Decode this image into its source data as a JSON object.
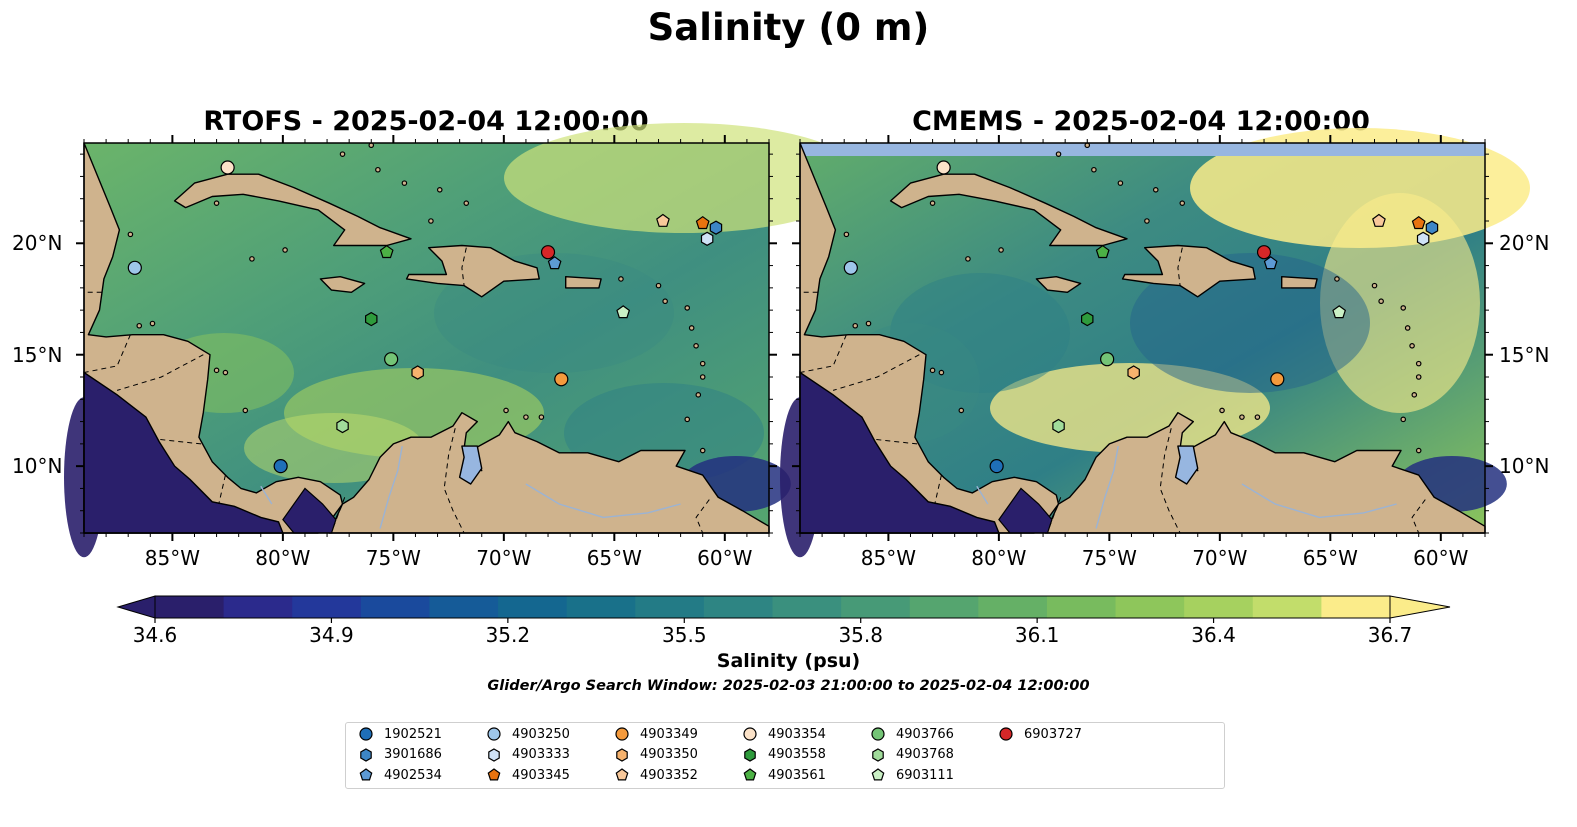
{
  "suptitle": "Salinity (0 m)",
  "panels": [
    {
      "title": "RTOFS - 2025-02-04 12:00:00",
      "model": "RTOFS"
    },
    {
      "title": "CMEMS - 2025-02-04 12:00:00",
      "model": "CMEMS"
    }
  ],
  "lon_ticks": [
    {
      "value": -85,
      "label": "85°W"
    },
    {
      "value": -80,
      "label": "80°W"
    },
    {
      "value": -75,
      "label": "75°W"
    },
    {
      "value": -70,
      "label": "70°W"
    },
    {
      "value": -65,
      "label": "65°W"
    },
    {
      "value": -60,
      "label": "60°W"
    }
  ],
  "lat_ticks": [
    {
      "value": 10,
      "label": "10°N"
    },
    {
      "value": 15,
      "label": "15°N"
    },
    {
      "value": 20,
      "label": "20°N"
    }
  ],
  "extent": {
    "lon_min": -89,
    "lon_max": -58,
    "lat_min": 7,
    "lat_max": 24.5
  },
  "colorbar": {
    "label": "Salinity (psu)",
    "vmin": 34.6,
    "vmax": 36.7,
    "ticks": [
      "34.6",
      "34.9",
      "35.2",
      "35.5",
      "35.8",
      "36.1",
      "36.4",
      "36.7"
    ],
    "colors": [
      "#2a1f6b",
      "#2b2a8c",
      "#23389b",
      "#1a4a9d",
      "#155b98",
      "#146790",
      "#19718a",
      "#237b86",
      "#2e8583",
      "#3a907e",
      "#479a77",
      "#55a56f",
      "#65b066",
      "#78bb5e",
      "#8ec65b",
      "#a6d15f",
      "#c2dd6b",
      "#fbec8a"
    ]
  },
  "search_window": "Glider/Argo Search Window: 2025-02-03 21:00:00 to 2025-02-04 12:00:00",
  "colors": {
    "land": "#cfb38d",
    "lake": "#97b6e0",
    "cmems_nodata": "#97b6e0",
    "ocean_mean": "#5aa56e"
  },
  "floats": [
    {
      "id": "1902521",
      "marker": "circle",
      "color": "#1f6fb8",
      "lon": -80.1,
      "lat": 10.0
    },
    {
      "id": "3901686",
      "marker": "hexagon",
      "color": "#3d86c6",
      "lon": -60.4,
      "lat": 20.7
    },
    {
      "id": "4902534",
      "marker": "pentagon",
      "color": "#5d9ad4",
      "lon": -67.7,
      "lat": 19.1
    },
    {
      "id": "4903250",
      "marker": "circle",
      "color": "#9ec6ea",
      "lon": -86.7,
      "lat": 18.9
    },
    {
      "id": "4903333",
      "marker": "hexagon",
      "color": "#cfe2f6",
      "lon": -60.8,
      "lat": 20.2
    },
    {
      "id": "4903345",
      "marker": "pentagon",
      "color": "#e8730f",
      "lon": -61.0,
      "lat": 20.9
    },
    {
      "id": "4903349",
      "marker": "circle",
      "color": "#f49a3c",
      "lon": -67.4,
      "lat": 13.9
    },
    {
      "id": "4903350",
      "marker": "hexagon",
      "color": "#f6b26d",
      "lon": -73.9,
      "lat": 14.2
    },
    {
      "id": "4903352",
      "marker": "pentagon",
      "color": "#f8c89a",
      "lon": -62.8,
      "lat": 21.0
    },
    {
      "id": "4903354",
      "marker": "circle",
      "color": "#fbe2c8",
      "lon": -82.5,
      "lat": 23.4
    },
    {
      "id": "4903558",
      "marker": "hexagon",
      "color": "#2e9b3c",
      "lon": -76.0,
      "lat": 16.6
    },
    {
      "id": "4903561",
      "marker": "pentagon",
      "color": "#4cb145",
      "lon": -75.3,
      "lat": 19.6
    },
    {
      "id": "4903766",
      "marker": "circle",
      "color": "#74c476",
      "lon": -75.1,
      "lat": 14.8
    },
    {
      "id": "4903768",
      "marker": "hexagon",
      "color": "#a1dc9b",
      "lon": -77.3,
      "lat": 11.8
    },
    {
      "id": "6903111",
      "marker": "pentagon",
      "color": "#caf0c5",
      "lon": -64.6,
      "lat": 16.9
    },
    {
      "id": "6903727",
      "marker": "circle",
      "color": "#d62728",
      "lon": -68.0,
      "lat": 19.6
    }
  ]
}
